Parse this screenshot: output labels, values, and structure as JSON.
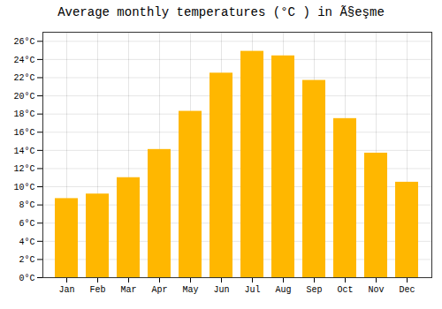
{
  "chart_data": {
    "type": "bar",
    "title": "Average monthly temperatures (°C ) in Ã§eşme",
    "categories": [
      "Jan",
      "Feb",
      "Mar",
      "Apr",
      "May",
      "Jun",
      "Jul",
      "Aug",
      "Sep",
      "Oct",
      "Nov",
      "Dec"
    ],
    "values": [
      8.7,
      9.2,
      11.0,
      14.1,
      18.3,
      22.5,
      24.9,
      24.4,
      21.7,
      17.5,
      13.7,
      10.5
    ],
    "color": "#FFB700",
    "ylim": [
      0,
      27
    ],
    "yticks": [
      {
        "value": 0,
        "label": "0°C"
      },
      {
        "value": 2,
        "label": "2°C"
      },
      {
        "value": 4,
        "label": "4°C"
      },
      {
        "value": 6,
        "label": "6°C"
      },
      {
        "value": 8,
        "label": "8°C"
      },
      {
        "value": 10,
        "label": "10°C"
      },
      {
        "value": 12,
        "label": "12°C"
      },
      {
        "value": 14,
        "label": "14°C"
      },
      {
        "value": 16,
        "label": "16°C"
      },
      {
        "value": 18,
        "label": "18°C"
      },
      {
        "value": 20,
        "label": "20°C"
      },
      {
        "value": 22,
        "label": "22°C"
      },
      {
        "value": 24,
        "label": "24°C"
      },
      {
        "value": 26,
        "label": "26°C"
      }
    ],
    "grid": true
  }
}
